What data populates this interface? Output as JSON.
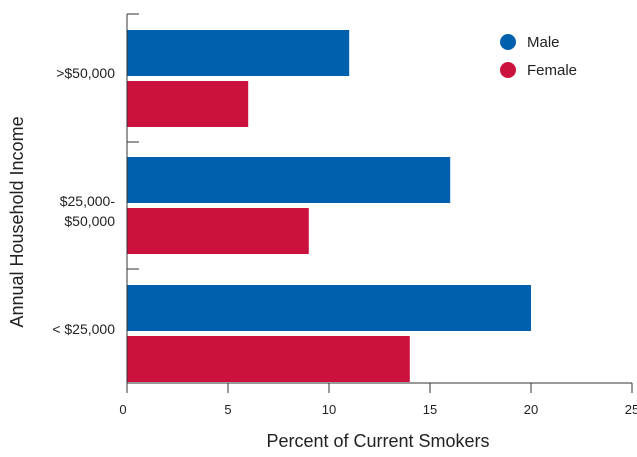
{
  "chart_data": {
    "type": "bar",
    "orientation": "horizontal",
    "categories": [
      ">$50,000",
      "$25,000-\n$50,000",
      "< $25,000"
    ],
    "series": [
      {
        "name": "Male",
        "values": [
          11,
          16,
          20
        ],
        "color": "#0060AE"
      },
      {
        "name": "Female",
        "values": [
          6,
          9,
          14
        ],
        "color": "#CB123F"
      }
    ],
    "xlabel": "Percent of Current Smokers",
    "ylabel": "Annual Household Income",
    "xlim": [
      0,
      25
    ],
    "xticks": [
      0,
      5,
      10,
      15,
      20,
      25
    ],
    "grid": false,
    "legend_position": "top-right"
  }
}
